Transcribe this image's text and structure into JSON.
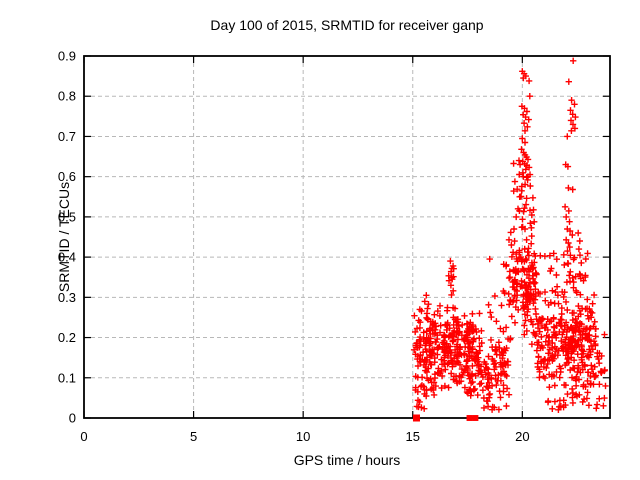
{
  "chart_data": {
    "type": "scatter",
    "title": "Day 100 of 2015, SRMTID for receiver ganp",
    "xlabel": "GPS time / hours",
    "ylabel": "SRMTID / TECUs",
    "xlim": [
      0,
      24
    ],
    "ylim": [
      0,
      0.9
    ],
    "grid": "dashed gray at major ticks",
    "legend": "none",
    "marker": "plus-cross",
    "marker_color": "#ff0000",
    "x_ticks": [
      {
        "label": "0",
        "v": 0
      },
      {
        "label": "5",
        "v": 5
      },
      {
        "label": "10",
        "v": 10
      },
      {
        "label": "15",
        "v": 15
      },
      {
        "label": "20",
        "v": 20
      }
    ],
    "y_ticks": [
      {
        "label": "0",
        "v": 0
      },
      {
        "label": "0.1",
        "v": 0.1
      },
      {
        "label": "0.2",
        "v": 0.2
      },
      {
        "label": "0.3",
        "v": 0.3
      },
      {
        "label": "0.4",
        "v": 0.4
      },
      {
        "label": "0.5",
        "v": 0.5
      },
      {
        "label": "0.6",
        "v": 0.6
      },
      {
        "label": "0.7",
        "v": 0.7
      },
      {
        "label": "0.8",
        "v": 0.8
      },
      {
        "label": "0.9",
        "v": 0.9
      }
    ],
    "data_time_range_hours": [
      15.05,
      23.8
    ],
    "zero_value_squares": [
      {
        "x": 15.17,
        "w": 0.32
      },
      {
        "x": 17.59,
        "w": 0.27
      },
      {
        "x": 17.86,
        "w": 0.27
      }
    ],
    "clusters": [
      {
        "x": [
          15.05,
          16.1
        ],
        "y": [
          0.05,
          0.28
        ],
        "n": 115,
        "dist": "tri"
      },
      {
        "x": [
          15.05,
          15.65
        ],
        "y": [
          0.02,
          0.09
        ],
        "n": 12,
        "dist": "uni"
      },
      {
        "x": [
          16.1,
          17.0
        ],
        "y": [
          0.06,
          0.3
        ],
        "n": 100,
        "dist": "tri"
      },
      {
        "x": [
          16.62,
          16.88
        ],
        "y": [
          0.3,
          0.4
        ],
        "n": 7,
        "dist": "uni"
      },
      {
        "x": [
          17.0,
          17.62
        ],
        "y": [
          0.04,
          0.3
        ],
        "n": 85,
        "dist": "tri"
      },
      {
        "x": [
          17.62,
          18.15
        ],
        "y": [
          0.03,
          0.28
        ],
        "n": 60,
        "dist": "tri"
      },
      {
        "x": [
          18.15,
          18.75
        ],
        "y": [
          0.02,
          0.14
        ],
        "n": 22,
        "dist": "uni"
      },
      {
        "x": [
          18.4,
          19.35
        ],
        "y": [
          0.05,
          0.24
        ],
        "n": 55,
        "dist": "tri"
      },
      {
        "x": [
          18.4,
          19.3
        ],
        "y": [
          0.24,
          0.4
        ],
        "n": 12,
        "dist": "uni"
      },
      {
        "x": [
          19.35,
          19.95
        ],
        "y": [
          0.18,
          0.5
        ],
        "n": 48,
        "dist": "tri"
      },
      {
        "x": [
          19.6,
          19.98
        ],
        "y": [
          0.5,
          0.64
        ],
        "n": 8,
        "dist": "uni"
      },
      {
        "x": [
          19.95,
          20.65
        ],
        "y": [
          0.15,
          0.47
        ],
        "n": 95,
        "dist": "tri"
      },
      {
        "x": [
          19.95,
          20.6
        ],
        "y": [
          0.47,
          0.62
        ],
        "n": 22,
        "dist": "uni"
      },
      {
        "x": [
          20.65,
          21.85
        ],
        "y": [
          0.05,
          0.34
        ],
        "n": 115,
        "dist": "tri"
      },
      {
        "x": [
          20.7,
          21.6
        ],
        "y": [
          0.34,
          0.41
        ],
        "n": 8,
        "dist": "uni"
      },
      {
        "x": [
          21.85,
          22.5
        ],
        "y": [
          0.05,
          0.33
        ],
        "n": 88,
        "dist": "tri"
      },
      {
        "x": [
          21.88,
          22.45
        ],
        "y": [
          0.33,
          0.42
        ],
        "n": 14,
        "dist": "uni"
      },
      {
        "x": [
          22.5,
          23.35
        ],
        "y": [
          0.05,
          0.33
        ],
        "n": 100,
        "dist": "tri"
      },
      {
        "x": [
          22.45,
          23.0
        ],
        "y": [
          0.33,
          0.42
        ],
        "n": 10,
        "dist": "uni"
      },
      {
        "x": [
          23.35,
          23.8
        ],
        "y": [
          0.03,
          0.26
        ],
        "n": 20,
        "dist": "uni"
      },
      {
        "x": [
          21.0,
          23.4
        ],
        "y": [
          0.02,
          0.06
        ],
        "n": 22,
        "dist": "uni"
      },
      {
        "x": [
          18.9,
          19.6
        ],
        "y": [
          0.02,
          0.07
        ],
        "n": 6,
        "dist": "uni"
      }
    ],
    "points": [
      [
        20.0,
        0.862
      ],
      [
        20.08,
        0.856
      ],
      [
        20.16,
        0.85
      ],
      [
        20.05,
        0.845
      ],
      [
        20.31,
        0.838
      ],
      [
        20.34,
        0.8
      ],
      [
        19.98,
        0.775
      ],
      [
        20.1,
        0.77
      ],
      [
        20.21,
        0.762
      ],
      [
        20.04,
        0.754
      ],
      [
        20.15,
        0.748
      ],
      [
        20.29,
        0.742
      ],
      [
        20.08,
        0.733
      ],
      [
        20.23,
        0.724
      ],
      [
        20.12,
        0.714
      ],
      [
        20.0,
        0.695
      ],
      [
        20.12,
        0.685
      ],
      [
        19.96,
        0.668
      ],
      [
        20.06,
        0.66
      ],
      [
        20.12,
        0.654
      ],
      [
        20.19,
        0.649
      ],
      [
        20.26,
        0.643
      ],
      [
        20.02,
        0.638
      ],
      [
        20.11,
        0.632
      ],
      [
        20.21,
        0.628
      ],
      [
        20.31,
        0.623
      ],
      [
        20.16,
        0.618
      ],
      [
        20.05,
        0.6
      ],
      [
        20.24,
        0.592
      ],
      [
        22.32,
        0.888
      ],
      [
        22.12,
        0.836
      ],
      [
        22.25,
        0.79
      ],
      [
        22.38,
        0.78
      ],
      [
        22.2,
        0.765
      ],
      [
        22.3,
        0.755
      ],
      [
        22.42,
        0.748
      ],
      [
        22.22,
        0.74
      ],
      [
        22.31,
        0.73
      ],
      [
        22.4,
        0.72
      ],
      [
        22.24,
        0.714
      ],
      [
        22.05,
        0.7
      ],
      [
        21.98,
        0.63
      ],
      [
        22.08,
        0.625
      ],
      [
        22.1,
        0.572
      ],
      [
        22.3,
        0.568
      ],
      [
        21.95,
        0.525
      ],
      [
        22.12,
        0.515
      ],
      [
        22.0,
        0.5
      ],
      [
        22.15,
        0.488
      ],
      [
        22.05,
        0.47
      ],
      [
        22.18,
        0.465
      ],
      [
        22.28,
        0.455
      ],
      [
        22.0,
        0.443
      ],
      [
        22.1,
        0.435
      ],
      [
        22.16,
        0.425
      ],
      [
        22.06,
        0.415
      ],
      [
        16.72,
        0.39
      ],
      [
        16.78,
        0.372
      ],
      [
        16.75,
        0.364
      ],
      [
        16.8,
        0.345
      ],
      [
        16.74,
        0.33
      ],
      [
        16.77,
        0.306
      ],
      [
        15.62,
        0.305
      ],
      [
        15.55,
        0.29
      ],
      [
        15.72,
        0.283
      ],
      [
        15.32,
        0.27
      ],
      [
        18.25,
        0.025
      ],
      [
        18.38,
        0.042
      ],
      [
        18.52,
        0.06
      ],
      [
        18.62,
        0.08
      ],
      [
        22.55,
        0.46
      ],
      [
        22.62,
        0.44
      ],
      [
        22.58,
        0.42
      ],
      [
        19.5,
        0.43
      ],
      [
        19.62,
        0.47
      ],
      [
        19.72,
        0.5
      ],
      [
        19.8,
        0.52
      ],
      [
        19.88,
        0.55
      ],
      [
        19.9,
        0.63
      ],
      [
        19.85,
        0.64
      ]
    ],
    "colors": {
      "marker": "#ff0000",
      "grid": "#b8b8b8",
      "border": "#000000",
      "background": "#ffffff",
      "text": "#000000"
    }
  }
}
